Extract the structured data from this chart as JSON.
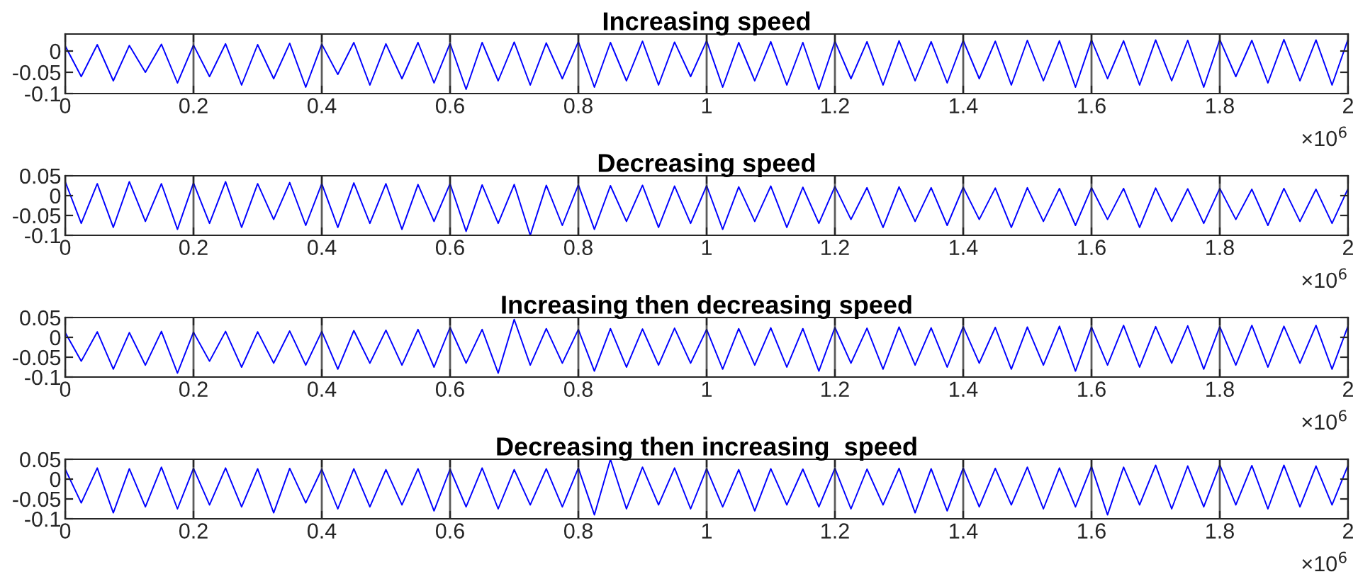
{
  "chart_data": [
    {
      "type": "line",
      "title": "Increasing speed",
      "grid": "x",
      "xlim": [
        0,
        2
      ],
      "ylim": [
        -0.1,
        0.04
      ],
      "xticks": [
        0,
        0.2,
        0.4,
        0.6,
        0.8,
        1,
        1.2,
        1.4,
        1.6,
        1.8,
        2
      ],
      "yticks": [
        -0.1,
        -0.05,
        0
      ],
      "annotations": [
        "×10$^{6}$"
      ],
      "x": [
        0,
        0.025,
        0.05,
        0.075,
        0.1,
        0.125,
        0.15,
        0.175,
        0.2,
        0.225,
        0.25,
        0.275,
        0.3,
        0.325,
        0.35,
        0.375,
        0.4,
        0.425,
        0.45,
        0.475,
        0.5,
        0.525,
        0.55,
        0.575,
        0.6,
        0.625,
        0.65,
        0.675,
        0.7,
        0.725,
        0.75,
        0.775,
        0.8,
        0.825,
        0.85,
        0.875,
        0.9,
        0.925,
        0.95,
        0.975,
        1,
        1.025,
        1.05,
        1.075,
        1.1,
        1.125,
        1.15,
        1.175,
        1.2,
        1.225,
        1.25,
        1.275,
        1.3,
        1.325,
        1.35,
        1.375,
        1.4,
        1.425,
        1.45,
        1.475,
        1.5,
        1.525,
        1.55,
        1.575,
        1.6,
        1.625,
        1.65,
        1.675,
        1.7,
        1.725,
        1.75,
        1.775,
        1.8,
        1.825,
        1.85,
        1.875,
        1.9,
        1.925,
        1.95,
        1.975,
        2
      ],
      "series": [
        {
          "color": "#0000ff",
          "values": [
            0.012,
            -0.06,
            0.015,
            -0.07,
            0.013,
            -0.05,
            0.016,
            -0.075,
            0.014,
            -0.06,
            0.017,
            -0.08,
            0.015,
            -0.065,
            0.018,
            -0.085,
            0.016,
            -0.055,
            0.02,
            -0.08,
            0.017,
            -0.065,
            0.02,
            -0.075,
            0.018,
            -0.09,
            0.02,
            -0.07,
            0.021,
            -0.08,
            0.019,
            -0.065,
            0.022,
            -0.085,
            0.02,
            -0.07,
            0.023,
            -0.08,
            0.021,
            -0.06,
            0.024,
            -0.085,
            0.02,
            -0.07,
            0.022,
            -0.08,
            0.02,
            -0.09,
            0.023,
            -0.065,
            0.022,
            -0.08,
            0.024,
            -0.07,
            0.022,
            -0.075,
            0.025,
            -0.065,
            0.023,
            -0.08,
            0.025,
            -0.07,
            0.024,
            -0.085,
            0.026,
            -0.065,
            0.024,
            -0.08,
            0.026,
            -0.07,
            0.025,
            -0.085,
            0.027,
            -0.06,
            0.025,
            -0.075,
            0.027,
            -0.07,
            0.026,
            -0.08,
            0.028
          ]
        }
      ]
    },
    {
      "type": "line",
      "title": "Decreasing speed",
      "grid": "x",
      "xlim": [
        0,
        2
      ],
      "ylim": [
        -0.1,
        0.05
      ],
      "xticks": [
        0,
        0.2,
        0.4,
        0.6,
        0.8,
        1,
        1.2,
        1.4,
        1.6,
        1.8,
        2
      ],
      "yticks": [
        -0.1,
        -0.05,
        0,
        0.05
      ],
      "annotations": [
        "×10$^{6}$"
      ],
      "x": [
        0,
        0.025,
        0.05,
        0.075,
        0.1,
        0.125,
        0.15,
        0.175,
        0.2,
        0.225,
        0.25,
        0.275,
        0.3,
        0.325,
        0.35,
        0.375,
        0.4,
        0.425,
        0.45,
        0.475,
        0.5,
        0.525,
        0.55,
        0.575,
        0.6,
        0.625,
        0.65,
        0.675,
        0.7,
        0.725,
        0.75,
        0.775,
        0.8,
        0.825,
        0.85,
        0.875,
        0.9,
        0.925,
        0.95,
        0.975,
        1,
        1.025,
        1.05,
        1.075,
        1.1,
        1.125,
        1.15,
        1.175,
        1.2,
        1.225,
        1.25,
        1.275,
        1.3,
        1.325,
        1.35,
        1.375,
        1.4,
        1.425,
        1.45,
        1.475,
        1.5,
        1.525,
        1.55,
        1.575,
        1.6,
        1.625,
        1.65,
        1.675,
        1.7,
        1.725,
        1.75,
        1.775,
        1.8,
        1.825,
        1.85,
        1.875,
        1.9,
        1.925,
        1.95,
        1.975,
        2
      ],
      "series": [
        {
          "color": "#0000ff",
          "values": [
            0.035,
            -0.07,
            0.03,
            -0.08,
            0.035,
            -0.065,
            0.03,
            -0.085,
            0.032,
            -0.07,
            0.035,
            -0.08,
            0.03,
            -0.06,
            0.033,
            -0.075,
            0.03,
            -0.08,
            0.032,
            -0.07,
            0.03,
            -0.085,
            0.028,
            -0.065,
            0.03,
            -0.09,
            0.027,
            -0.07,
            0.028,
            -0.1,
            0.026,
            -0.075,
            0.027,
            -0.085,
            0.025,
            -0.065,
            0.026,
            -0.08,
            0.024,
            -0.07,
            0.025,
            -0.085,
            0.022,
            -0.065,
            0.024,
            -0.08,
            0.021,
            -0.07,
            0.023,
            -0.06,
            0.02,
            -0.08,
            0.022,
            -0.065,
            0.02,
            -0.075,
            0.021,
            -0.06,
            0.019,
            -0.08,
            0.02,
            -0.065,
            0.018,
            -0.075,
            0.02,
            -0.06,
            0.018,
            -0.08,
            0.019,
            -0.065,
            0.017,
            -0.07,
            0.018,
            -0.06,
            0.016,
            -0.075,
            0.018,
            -0.065,
            0.016,
            -0.07,
            0.018
          ]
        }
      ]
    },
    {
      "type": "line",
      "title": "Increasing then decreasing speed",
      "grid": "x",
      "xlim": [
        0,
        2
      ],
      "ylim": [
        -0.1,
        0.05
      ],
      "xticks": [
        0,
        0.2,
        0.4,
        0.6,
        0.8,
        1,
        1.2,
        1.4,
        1.6,
        1.8,
        2
      ],
      "yticks": [
        -0.1,
        -0.05,
        0,
        0.05
      ],
      "annotations": [
        "×10$^{6}$"
      ],
      "x": [
        0,
        0.025,
        0.05,
        0.075,
        0.1,
        0.125,
        0.15,
        0.175,
        0.2,
        0.225,
        0.25,
        0.275,
        0.3,
        0.325,
        0.35,
        0.375,
        0.4,
        0.425,
        0.45,
        0.475,
        0.5,
        0.525,
        0.55,
        0.575,
        0.6,
        0.625,
        0.65,
        0.675,
        0.7,
        0.725,
        0.75,
        0.775,
        0.8,
        0.825,
        0.85,
        0.875,
        0.9,
        0.925,
        0.95,
        0.975,
        1,
        1.025,
        1.05,
        1.075,
        1.1,
        1.125,
        1.15,
        1.175,
        1.2,
        1.225,
        1.25,
        1.275,
        1.3,
        1.325,
        1.35,
        1.375,
        1.4,
        1.425,
        1.45,
        1.475,
        1.5,
        1.525,
        1.55,
        1.575,
        1.6,
        1.625,
        1.65,
        1.675,
        1.7,
        1.725,
        1.75,
        1.775,
        1.8,
        1.825,
        1.85,
        1.875,
        1.9,
        1.925,
        1.95,
        1.975,
        2
      ],
      "series": [
        {
          "color": "#0000ff",
          "values": [
            0.012,
            -0.06,
            0.014,
            -0.08,
            0.012,
            -0.07,
            0.015,
            -0.09,
            0.013,
            -0.06,
            0.015,
            -0.075,
            0.014,
            -0.065,
            0.016,
            -0.07,
            0.015,
            -0.08,
            0.017,
            -0.065,
            0.018,
            -0.07,
            0.02,
            -0.075,
            0.025,
            -0.065,
            0.02,
            -0.09,
            0.045,
            -0.07,
            0.022,
            -0.065,
            0.02,
            -0.085,
            0.022,
            -0.075,
            0.021,
            -0.07,
            0.023,
            -0.065,
            0.02,
            -0.08,
            0.022,
            -0.07,
            0.024,
            -0.075,
            0.022,
            -0.085,
            0.025,
            -0.065,
            0.023,
            -0.08,
            0.026,
            -0.07,
            0.024,
            -0.075,
            0.027,
            -0.065,
            0.025,
            -0.08,
            0.026,
            -0.07,
            0.028,
            -0.085,
            0.026,
            -0.07,
            0.03,
            -0.075,
            0.027,
            -0.065,
            0.029,
            -0.08,
            0.027,
            -0.07,
            0.03,
            -0.075,
            0.028,
            -0.065,
            0.03,
            -0.08,
            0.029
          ]
        }
      ]
    },
    {
      "type": "line",
      "title": "Decreasing then increasing  speed",
      "grid": "x",
      "xlim": [
        0,
        2
      ],
      "ylim": [
        -0.1,
        0.05
      ],
      "xticks": [
        0,
        0.2,
        0.4,
        0.6,
        0.8,
        1,
        1.2,
        1.4,
        1.6,
        1.8,
        2
      ],
      "yticks": [
        -0.1,
        -0.05,
        0,
        0.05
      ],
      "annotations": [
        "×10$^{6}$"
      ],
      "x": [
        0,
        0.025,
        0.05,
        0.075,
        0.1,
        0.125,
        0.15,
        0.175,
        0.2,
        0.225,
        0.25,
        0.275,
        0.3,
        0.325,
        0.35,
        0.375,
        0.4,
        0.425,
        0.45,
        0.475,
        0.5,
        0.525,
        0.55,
        0.575,
        0.6,
        0.625,
        0.65,
        0.675,
        0.7,
        0.725,
        0.75,
        0.775,
        0.8,
        0.825,
        0.85,
        0.875,
        0.9,
        0.925,
        0.95,
        0.975,
        1,
        1.025,
        1.05,
        1.075,
        1.1,
        1.125,
        1.15,
        1.175,
        1.2,
        1.225,
        1.25,
        1.275,
        1.3,
        1.325,
        1.35,
        1.375,
        1.4,
        1.425,
        1.45,
        1.475,
        1.5,
        1.525,
        1.55,
        1.575,
        1.6,
        1.625,
        1.65,
        1.675,
        1.7,
        1.725,
        1.75,
        1.775,
        1.8,
        1.825,
        1.85,
        1.875,
        1.9,
        1.925,
        1.95,
        1.975,
        2
      ],
      "series": [
        {
          "color": "#0000ff",
          "values": [
            0.025,
            -0.06,
            0.028,
            -0.085,
            0.026,
            -0.07,
            0.03,
            -0.075,
            0.027,
            -0.065,
            0.028,
            -0.07,
            0.026,
            -0.085,
            0.027,
            -0.06,
            0.025,
            -0.075,
            0.026,
            -0.07,
            0.024,
            -0.065,
            0.026,
            -0.08,
            0.025,
            -0.07,
            0.028,
            -0.075,
            0.024,
            -0.065,
            0.026,
            -0.07,
            0.028,
            -0.09,
            0.05,
            -0.075,
            0.03,
            -0.065,
            0.028,
            -0.075,
            0.026,
            -0.07,
            0.024,
            -0.08,
            0.026,
            -0.065,
            0.025,
            -0.07,
            0.027,
            -0.075,
            0.025,
            -0.065,
            0.027,
            -0.085,
            0.026,
            -0.08,
            0.028,
            -0.07,
            0.027,
            -0.065,
            0.03,
            -0.075,
            0.028,
            -0.07,
            0.032,
            -0.09,
            0.03,
            -0.065,
            0.035,
            -0.075,
            0.033,
            -0.07,
            0.036,
            -0.065,
            0.034,
            -0.075,
            0.035,
            -0.07,
            0.033,
            -0.065,
            0.035
          ]
        }
      ]
    }
  ]
}
